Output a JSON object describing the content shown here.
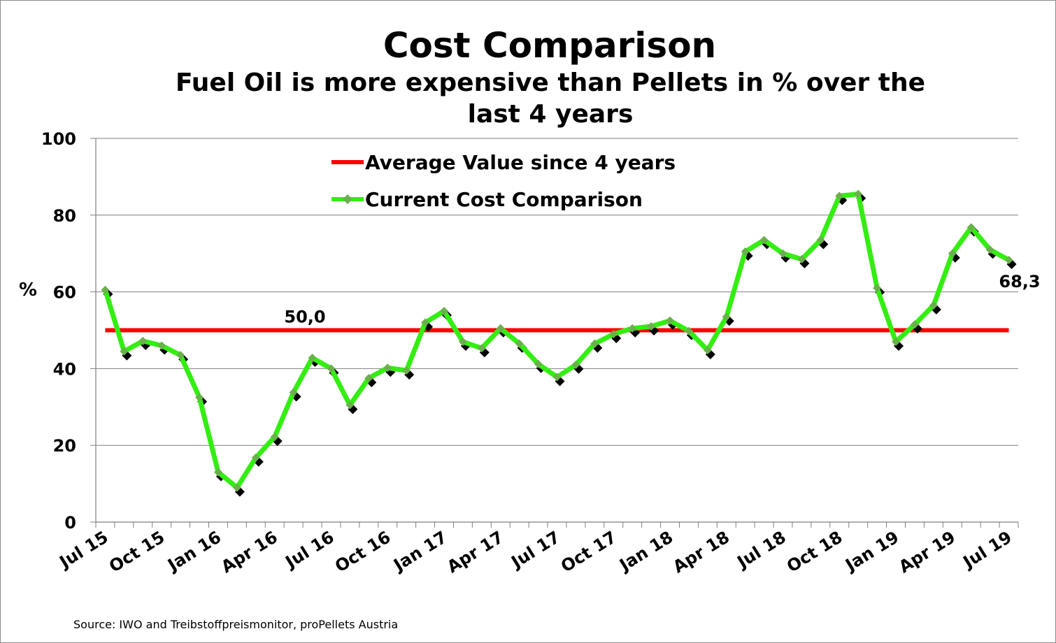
{
  "chart_data": {
    "type": "line",
    "title": "Cost Comparison",
    "subtitle_lines": [
      "Fuel Oil is more expensive than Pellets in % over the",
      "last 4 years"
    ],
    "ylabel": "%",
    "ylim": [
      0,
      100
    ],
    "yticks": [
      "0",
      "20",
      "40",
      "60",
      "80",
      "100"
    ],
    "xtick_labels": [
      "Jul 15",
      "Oct 15",
      "Jan 16",
      "Apr 16",
      "Jul 16",
      "Oct 16",
      "Jan 17",
      "Apr 17",
      "Jul 17",
      "Oct 17",
      "Jan 18",
      "Apr 18",
      "Jul 18",
      "Oct 18",
      "Jan 19",
      "Apr 19",
      "Jul 19"
    ],
    "x_months": [
      "Jul 15",
      "Aug 15",
      "Sep 15",
      "Oct 15",
      "Nov 15",
      "Dec 15",
      "Jan 16",
      "Feb 16",
      "Mar 16",
      "Apr 16",
      "May 16",
      "Jun 16",
      "Jul 16",
      "Aug 16",
      "Sep 16",
      "Oct 16",
      "Nov 16",
      "Dec 16",
      "Jan 17",
      "Feb 17",
      "Mar 17",
      "Apr 17",
      "May 17",
      "Jun 17",
      "Jul 17",
      "Aug 17",
      "Sep 17",
      "Oct 17",
      "Nov 17",
      "Dec 17",
      "Jan 18",
      "Feb 18",
      "Mar 18",
      "Apr 18",
      "May 18",
      "Jun 18",
      "Jul 18",
      "Aug 18",
      "Sep 18",
      "Oct 18",
      "Nov 18",
      "Dec 18",
      "Jan 19",
      "Feb 19",
      "Mar 19",
      "Apr 19",
      "May 19",
      "Jun 19",
      "Jul 19"
    ],
    "series": [
      {
        "name": "Average Value since 4 years",
        "color": "#ff0000",
        "values": [
          50.0
        ],
        "label": "50,0"
      },
      {
        "name": "Current Cost Comparison",
        "color": "#33ee11",
        "marker_color": "#6ab04c",
        "values": [
          60.5,
          44.5,
          47.2,
          46.0,
          43.5,
          32.5,
          13.0,
          9.0,
          16.8,
          22.2,
          33.8,
          42.8,
          40.0,
          30.5,
          37.5,
          40.2,
          39.5,
          52.0,
          55.0,
          47.0,
          45.3,
          50.5,
          46.5,
          41.2,
          37.8,
          41.0,
          46.5,
          49.0,
          50.5,
          51.0,
          52.5,
          49.8,
          44.8,
          53.5,
          70.5,
          73.5,
          70.0,
          68.5,
          73.5,
          85.0,
          85.5,
          61.0,
          47.0,
          51.5,
          56.5,
          70.0,
          76.8,
          71.0,
          68.3
        ],
        "end_label": "68,3"
      }
    ],
    "legend": {
      "position": "top-center",
      "entries": [
        "Average Value since 4 years",
        "Current Cost Comparison"
      ]
    },
    "source": "Source: IWO and Treibstoffpreismonitor, proPellets Austria"
  }
}
